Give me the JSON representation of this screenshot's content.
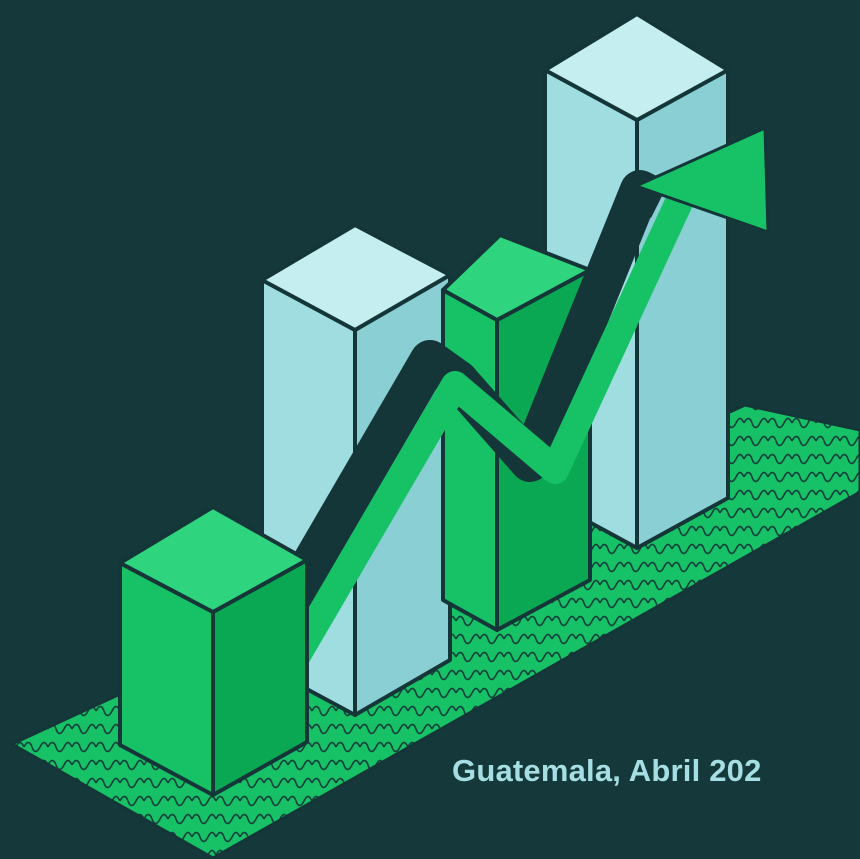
{
  "caption": "Guatemala, Abril 202",
  "colors": {
    "background": "#15393b",
    "outline": "#143638",
    "green_front": "#17c266",
    "green_light": "#2fd57e",
    "green_dark": "#0aa853",
    "blue_front": "#9fdde1",
    "blue_light": "#c4eef0",
    "blue_dark": "#89cfd4",
    "caption_text": "#a6dfe3"
  },
  "illustration": {
    "icon": "rising-bar-chart-with-trend-arrow",
    "bars": [
      {
        "order": 1,
        "color": "green"
      },
      {
        "order": 2,
        "color": "light-blue"
      },
      {
        "order": 3,
        "color": "green"
      },
      {
        "order": 4,
        "color": "light-blue"
      }
    ],
    "trend": "up"
  }
}
